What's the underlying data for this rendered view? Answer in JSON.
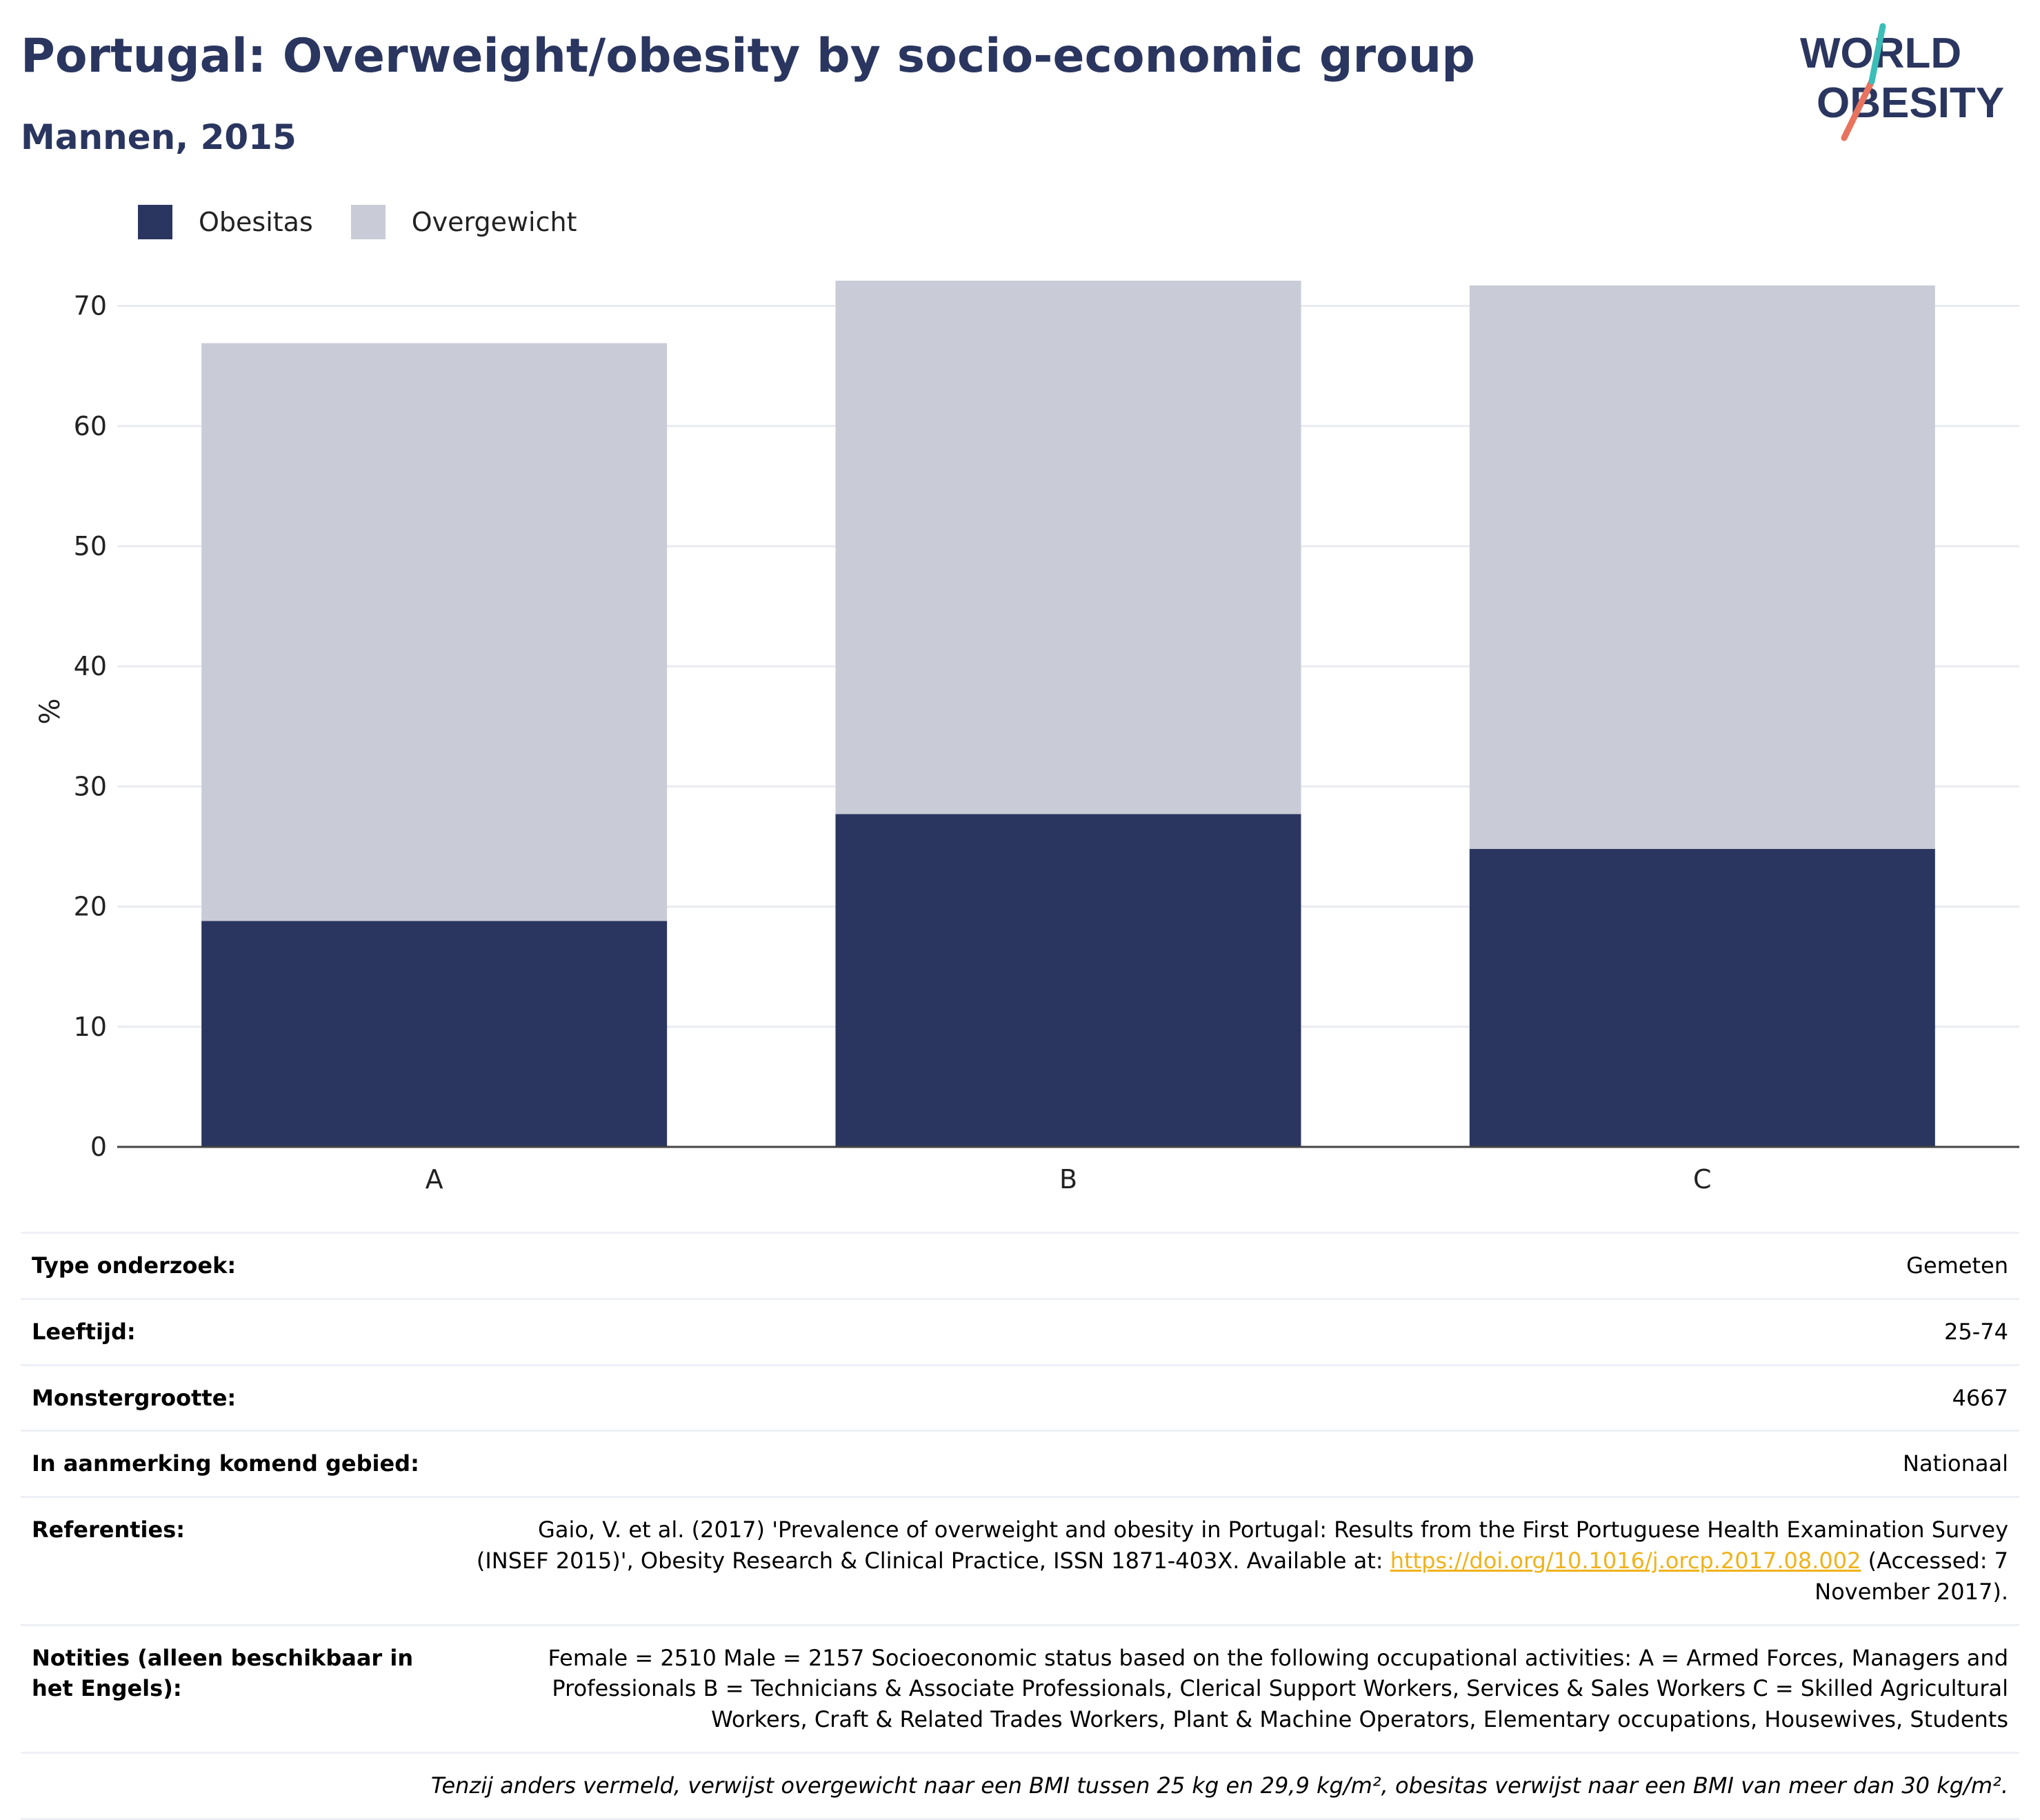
{
  "header": {
    "title": "Portugal: Overweight/obesity by socio-economic group",
    "subtitle": "Mannen, 2015"
  },
  "logo": {
    "line1": "WORLD",
    "line2": "OBESITY"
  },
  "colors": {
    "obesitas": "#2a365f",
    "overgewicht": "#c9cbd6",
    "title": "#2a365f",
    "link": "#f0b21b"
  },
  "chart_data": {
    "type": "bar",
    "stacked": true,
    "categories": [
      "A",
      "B",
      "C"
    ],
    "series": [
      {
        "name": "Obesitas",
        "values": [
          18.8,
          27.7,
          24.8
        ]
      },
      {
        "name": "Overgewicht",
        "values": [
          48.1,
          44.4,
          46.9
        ]
      }
    ],
    "ylabel": "%",
    "ylim": [
      0,
      72.5
    ],
    "yticks": [
      0,
      10,
      20,
      30,
      40,
      50,
      60,
      70
    ],
    "grid": true,
    "legend_position": "top-left"
  },
  "info": {
    "type_label": "Type onderzoek:",
    "type_value": "Gemeten",
    "age_label": "Leeftijd:",
    "age_value": "25-74",
    "sample_label": "Monstergrootte:",
    "sample_value": "4667",
    "area_label": "In aanmerking komend gebied:",
    "area_value": "Nationaal",
    "ref_label": "Referenties:",
    "ref_text": "Gaio, V. et al. (2017) 'Prevalence of overweight and obesity in Portugal: Results from the First Portuguese Health Examination Survey (INSEF 2015)', Obesity Research & Clinical Practice, ISSN 1871-403X. Available at: ",
    "ref_link": "https://doi.org/10.1016/j.orcp.2017.08.002",
    "ref_suffix": " (Accessed: 7 November 2017).",
    "notes_label": "Notities (alleen beschikbaar in het Engels):",
    "notes_text": "Female = 2510 Male = 2157 Socioeconomic status based on the following occupational activities: A = Armed Forces, Managers and Professionals B = Technicians & Associate Professionals, Clerical Support Workers, Services & Sales Workers C = Skilled Agricultural Workers, Craft & Related Trades Workers, Plant & Machine Operators, Elementary occupations, Housewives, Students",
    "footnote": "Tenzij anders vermeld, verwijst overgewicht naar een BMI tussen 25 kg en 29,9 kg/m², obesitas verwijst naar een BMI van meer dan 30 kg/m²."
  }
}
